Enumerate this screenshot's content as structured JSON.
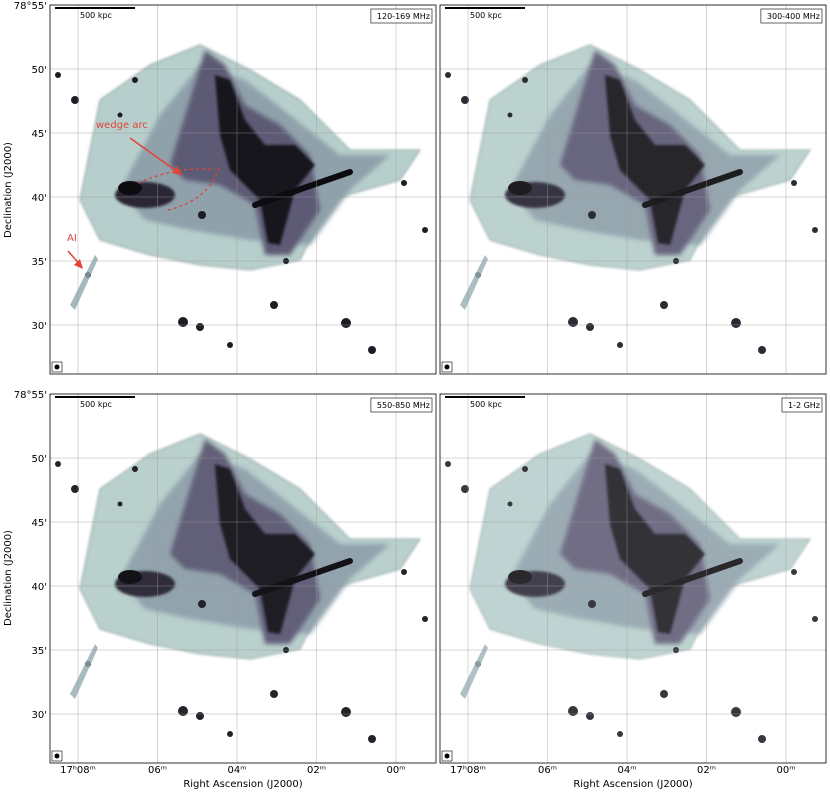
{
  "axes": {
    "y_label": "Declination (J2000)",
    "x_label": "Right Ascension (J2000)",
    "y_ticks": [
      "78°55'",
      "50'",
      "45'",
      "40'",
      "35'",
      "30'"
    ],
    "x_ticks": [
      "17ʰ08ᵐ",
      "06ᵐ",
      "04ᵐ",
      "02ᵐ",
      "00ᵐ"
    ]
  },
  "panels": [
    {
      "band": "120-169 MHz",
      "scale_bar": "500 kpc"
    },
    {
      "band": "300-400 MHz",
      "scale_bar": "500 kpc"
    },
    {
      "band": "550-850 MHz",
      "scale_bar": "500 kpc"
    },
    {
      "band": "1-2 GHz",
      "scale_bar": "500 kpc"
    }
  ],
  "annotations": {
    "wedge": "wedge arc",
    "relic": "AI"
  }
}
